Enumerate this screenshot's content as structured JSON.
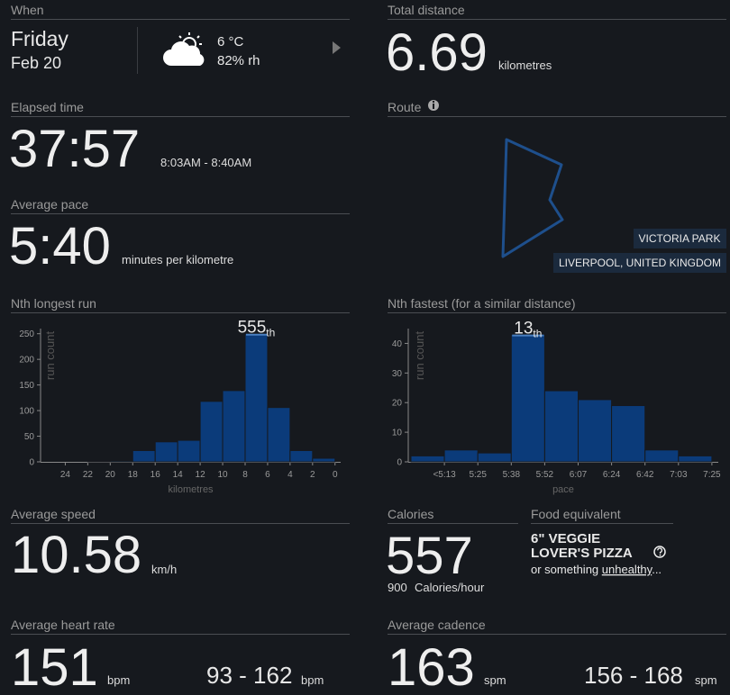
{
  "when": {
    "label": "When",
    "day": "Friday",
    "date": "Feb 20",
    "temperature": "6 °C",
    "humidity": "82% rh"
  },
  "total_distance": {
    "label": "Total distance",
    "value": "6.69",
    "unit": "kilometres"
  },
  "elapsed_time": {
    "label": "Elapsed time",
    "value": "37:57",
    "range": "8:03AM - 8:40AM"
  },
  "route": {
    "label": "Route",
    "park": "VICTORIA PARK",
    "location": "LIVERPOOL, UNITED KINGDOM"
  },
  "average_pace": {
    "label": "Average pace",
    "value": "5:40",
    "unit": "minutes per kilometre"
  },
  "average_speed": {
    "label": "Average speed",
    "value": "10.58",
    "unit": "km/h"
  },
  "calories": {
    "label": "Calories",
    "value": "557",
    "rate": "900",
    "rate_unit": "Calories/hour"
  },
  "food": {
    "label": "Food equivalent",
    "line1": "6\" VEGGIE",
    "line2": "LOVER'S PIZZA",
    "note": "or something",
    "link": "unhealthy",
    "ellipsis": "..."
  },
  "heart_rate": {
    "label": "Average heart rate",
    "value": "151",
    "unit": "bpm",
    "range": "93 - 162",
    "range_unit": "bpm"
  },
  "cadence": {
    "label": "Average cadence",
    "value": "163",
    "unit": "spm",
    "range": "156 - 168",
    "range_unit": "spm"
  },
  "chart_data": [
    {
      "type": "histogram",
      "title": "Nth longest run",
      "x_label": "kilometres",
      "y_label": "run count",
      "bins": [
        24,
        22,
        20,
        18,
        16,
        14,
        12,
        10,
        8,
        6,
        4,
        2,
        0
      ],
      "values": [
        0,
        1,
        2,
        22,
        39,
        42,
        118,
        139,
        250,
        106,
        22,
        7
      ],
      "color": "#0b3b7a",
      "highlight_color": "#4a7fc0",
      "highlight": 8,
      "annotation": {
        "rank": 555,
        "suffix": "th"
      },
      "xlim": [
        26.2,
        -0.5
      ],
      "xticks": [
        24,
        22,
        20,
        18,
        16,
        14,
        12,
        10,
        8,
        6,
        4,
        2,
        0
      ],
      "ylim": [
        0,
        260
      ],
      "yticks": [
        0,
        50,
        100,
        150,
        200,
        250
      ]
    },
    {
      "type": "histogram",
      "title": "Nth fastest (for a similar distance)",
      "x_label": "pace",
      "y_label": "run count",
      "bins": [
        null,
        "<5:13",
        "5:25",
        "5:38",
        "5:52",
        "6:07",
        "6:24",
        "6:42",
        "7:03",
        "7:25"
      ],
      "values": [
        2,
        4,
        3,
        43,
        24,
        21,
        19,
        4,
        2
      ],
      "color": "#0b3b7a",
      "highlight_color": "#4a7fc0",
      "highlight": 3,
      "annotation": {
        "rank": 13,
        "suffix": "th"
      },
      "ylim": [
        0,
        45
      ],
      "yticks": [
        0,
        10,
        20,
        30,
        40
      ]
    }
  ]
}
